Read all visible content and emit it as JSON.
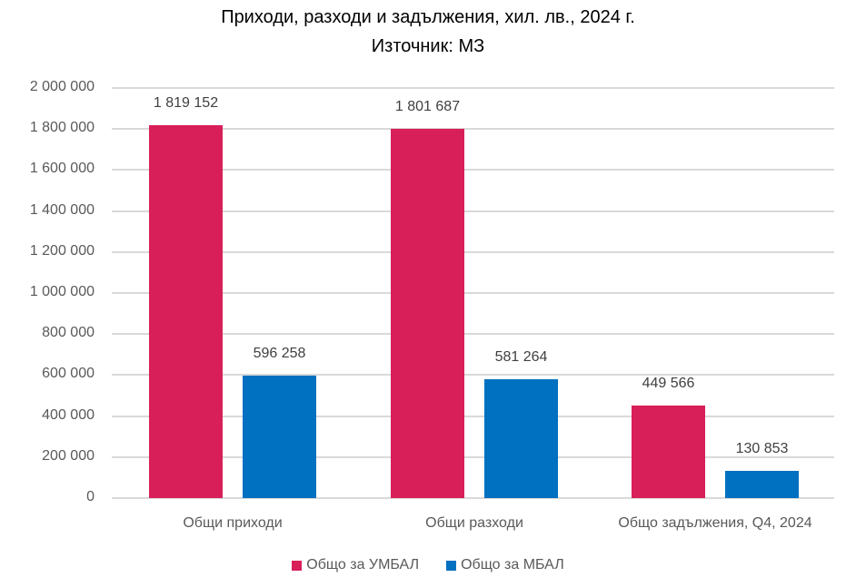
{
  "chart_data": {
    "type": "bar",
    "title": "Приходи, разходи и задължения, хил. лв., 2024 г.",
    "subtitle": "Източник: МЗ",
    "categories": [
      "Общи приходи",
      "Общи разходи",
      "Общо задължения, Q4, 2024"
    ],
    "series": [
      {
        "name": "Общо за УМБАЛ",
        "color": "#D81F5A",
        "values": [
          1819152,
          1801687,
          449566
        ],
        "labels": [
          "1 819 152",
          "1 801 687",
          "449 566"
        ]
      },
      {
        "name": "Общо за МБАЛ",
        "color": "#0070C0",
        "values": [
          596258,
          581264,
          130853
        ],
        "labels": [
          "596 258",
          "581 264",
          "130 853"
        ]
      }
    ],
    "xlabel": "",
    "ylabel": "",
    "ylim": [
      0,
      2000000
    ],
    "yticks": [
      "0",
      "200 000",
      "400 000",
      "600 000",
      "800 000",
      "1 000 000",
      "1 200 000",
      "1 400 000",
      "1 600 000",
      "1 800 000",
      "2 000 000"
    ],
    "grid": true,
    "legend_position": "bottom"
  }
}
